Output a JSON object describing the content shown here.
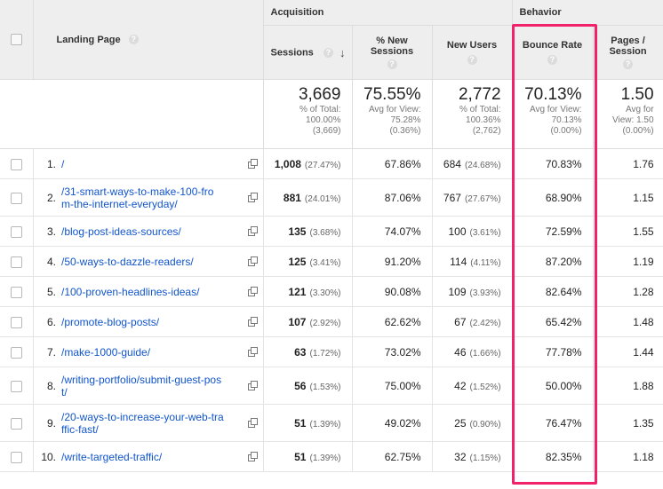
{
  "groups": {
    "acquisition": "Acquisition",
    "behavior": "Behavior"
  },
  "columns": {
    "landing_page": "Landing Page",
    "sessions": "Sessions",
    "pct_new_sessions_l1": "% New",
    "pct_new_sessions_l2": "Sessions",
    "new_users": "New Users",
    "bounce_rate": "Bounce Rate",
    "pages_session_l1": "Pages /",
    "pages_session_l2": "Session"
  },
  "help_glyph": "?",
  "totals": {
    "sessions": {
      "value": "3,669",
      "l1": "% of Total:",
      "l2": "100.00%",
      "l3": "(3,669)"
    },
    "pct_new_sessions": {
      "value": "75.55%",
      "l1": "Avg for View:",
      "l2": "75.28%",
      "l3": "(0.36%)"
    },
    "new_users": {
      "value": "2,772",
      "l1": "% of Total:",
      "l2": "100.36%",
      "l3": "(2,762)"
    },
    "bounce_rate": {
      "value": "70.13%",
      "l1": "Avg for View:",
      "l2": "70.13%",
      "l3": "(0.00%)"
    },
    "pages_session": {
      "value": "1.50",
      "l1": "Avg for",
      "l2": "View: 1.50",
      "l3": "(0.00%)"
    }
  },
  "rows": [
    {
      "idx": "1.",
      "page": [
        "/"
      ],
      "sessions": "1,008",
      "sessions_pct": "(27.47%)",
      "pct_new": "67.86%",
      "new_users": "684",
      "new_users_pct": "(24.68%)",
      "bounce": "70.83%",
      "pages": "1.76"
    },
    {
      "idx": "2.",
      "page": [
        "/31-smart-ways-to-make-100-fro",
        "m-the-internet-everyday/"
      ],
      "sessions": "881",
      "sessions_pct": "(24.01%)",
      "pct_new": "87.06%",
      "new_users": "767",
      "new_users_pct": "(27.67%)",
      "bounce": "68.90%",
      "pages": "1.15"
    },
    {
      "idx": "3.",
      "page": [
        "/blog-post-ideas-sources/"
      ],
      "sessions": "135",
      "sessions_pct": "(3.68%)",
      "pct_new": "74.07%",
      "new_users": "100",
      "new_users_pct": "(3.61%)",
      "bounce": "72.59%",
      "pages": "1.55"
    },
    {
      "idx": "4.",
      "page": [
        "/50-ways-to-dazzle-readers/"
      ],
      "sessions": "125",
      "sessions_pct": "(3.41%)",
      "pct_new": "91.20%",
      "new_users": "114",
      "new_users_pct": "(4.11%)",
      "bounce": "87.20%",
      "pages": "1.19"
    },
    {
      "idx": "5.",
      "page": [
        "/100-proven-headlines-ideas/"
      ],
      "sessions": "121",
      "sessions_pct": "(3.30%)",
      "pct_new": "90.08%",
      "new_users": "109",
      "new_users_pct": "(3.93%)",
      "bounce": "82.64%",
      "pages": "1.28"
    },
    {
      "idx": "6.",
      "page": [
        "/promote-blog-posts/"
      ],
      "sessions": "107",
      "sessions_pct": "(2.92%)",
      "pct_new": "62.62%",
      "new_users": "67",
      "new_users_pct": "(2.42%)",
      "bounce": "65.42%",
      "pages": "1.48"
    },
    {
      "idx": "7.",
      "page": [
        "/make-1000-guide/"
      ],
      "sessions": "63",
      "sessions_pct": "(1.72%)",
      "pct_new": "73.02%",
      "new_users": "46",
      "new_users_pct": "(1.66%)",
      "bounce": "77.78%",
      "pages": "1.44"
    },
    {
      "idx": "8.",
      "page": [
        "/writing-portfolio/submit-guest-pos",
        "t/"
      ],
      "sessions": "56",
      "sessions_pct": "(1.53%)",
      "pct_new": "75.00%",
      "new_users": "42",
      "new_users_pct": "(1.52%)",
      "bounce": "50.00%",
      "pages": "1.88"
    },
    {
      "idx": "9.",
      "page": [
        "/20-ways-to-increase-your-web-tra",
        "ffic-fast/"
      ],
      "sessions": "51",
      "sessions_pct": "(1.39%)",
      "pct_new": "49.02%",
      "new_users": "25",
      "new_users_pct": "(0.90%)",
      "bounce": "76.47%",
      "pages": "1.35"
    },
    {
      "idx": "10.",
      "page": [
        "/write-targeted-traffic/"
      ],
      "sessions": "51",
      "sessions_pct": "(1.39%)",
      "pct_new": "62.75%",
      "new_users": "32",
      "new_users_pct": "(1.15%)",
      "bounce": "82.35%",
      "pages": "1.18"
    }
  ],
  "highlight_color": "#f2226a"
}
